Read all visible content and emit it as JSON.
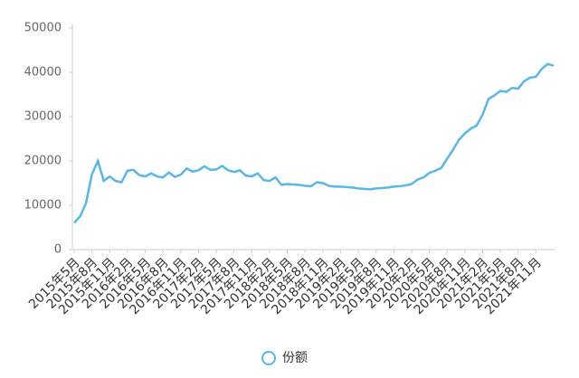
{
  "chart_data": {
    "type": "line",
    "categories": [
      "2015年5月",
      null,
      null,
      "2015年8月",
      null,
      null,
      "2015年11月",
      null,
      null,
      "2016年2月",
      null,
      null,
      "2016年5月",
      null,
      null,
      "2016年8月",
      null,
      null,
      "2016年11月",
      null,
      null,
      "2017年2月",
      null,
      null,
      "2017年5月",
      null,
      null,
      "2017年8月",
      null,
      null,
      "2017年11月",
      null,
      null,
      "2018年2月",
      null,
      null,
      "2018年5月",
      null,
      null,
      "2018年8月",
      null,
      null,
      "2018年11月",
      null,
      null,
      "2019年2月",
      null,
      null,
      "2019年5月",
      null,
      null,
      "2019年8月",
      null,
      null,
      "2019年11月",
      null,
      null,
      "2020年2月",
      null,
      null,
      "2020年5月",
      null,
      null,
      "2020年8月",
      null,
      null,
      "2020年11月",
      null,
      null,
      "2021年2月",
      null,
      null,
      "2021年5月",
      null,
      null,
      "2021年8月",
      null,
      null,
      "2021年11月",
      null,
      null,
      null
    ],
    "series": [
      {
        "name": "份额",
        "color": "#5ab7e5",
        "values": [
          6000,
          7500,
          10500,
          17000,
          20000,
          15500,
          16500,
          15500,
          15200,
          17800,
          18000,
          16800,
          16500,
          17200,
          16500,
          16300,
          17400,
          16400,
          16900,
          18300,
          17600,
          17900,
          18800,
          18000,
          18100,
          18900,
          17900,
          17500,
          17900,
          16700,
          16500,
          17200,
          15700,
          15500,
          16300,
          14600,
          14800,
          14700,
          14600,
          14400,
          14300,
          15200,
          15000,
          14400,
          14200,
          14200,
          14100,
          14000,
          13800,
          13700,
          13600,
          13800,
          13900,
          14000,
          14200,
          14300,
          14500,
          14800,
          15800,
          16300,
          17300,
          17800,
          18400,
          20500,
          22500,
          24800,
          26200,
          27300,
          28000,
          30500,
          34000,
          34800,
          35800,
          35600,
          36500,
          36300,
          38000,
          38800,
          39000,
          40800,
          41900,
          41500
        ]
      }
    ],
    "ylim": [
      0,
      50000
    ],
    "yticks": [
      0,
      10000,
      20000,
      30000,
      40000,
      50000
    ],
    "legend": "bottom"
  }
}
